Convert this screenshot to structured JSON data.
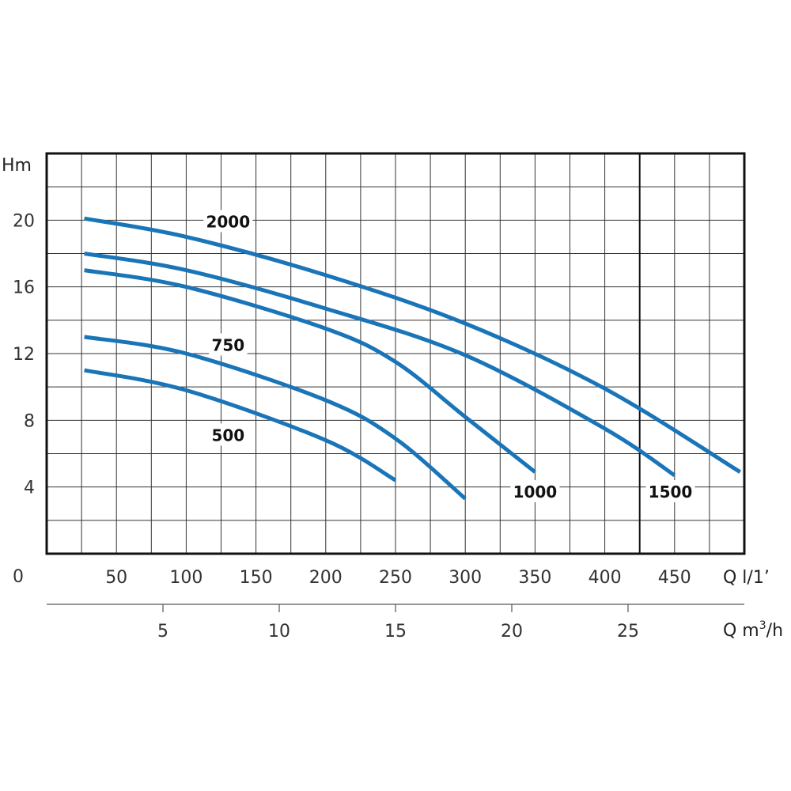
{
  "colors": {
    "curve": "#1a75b8",
    "grid": "#333333",
    "frame": "#111111",
    "background": "#ffffff"
  },
  "chart_data": {
    "type": "line",
    "grid": true,
    "y_axis": {
      "label": "Hm",
      "range": [
        0,
        24
      ],
      "ticks": [
        0,
        4,
        8,
        12,
        16,
        20
      ],
      "minor_step": 2
    },
    "x_axis_primary": {
      "label": "Q l/1’",
      "range": [
        0,
        500
      ],
      "ticks": [
        50,
        100,
        150,
        200,
        250,
        300,
        350,
        400,
        450
      ],
      "minor_step": 25
    },
    "x_axis_secondary": {
      "label_main": "Q m",
      "label_sup": "3",
      "label_tail": "/h",
      "ticks": [
        5,
        10,
        15,
        20,
        25
      ],
      "factor_l_per_min": 16.6667
    },
    "series": [
      {
        "name": "2000",
        "x": [
          27,
          100,
          200,
          300,
          400,
          497
        ],
        "y": [
          20.1,
          19.0,
          16.7,
          13.8,
          9.9,
          4.9
        ]
      },
      {
        "name": "1500",
        "x": [
          27,
          100,
          200,
          300,
          400,
          450
        ],
        "y": [
          18.0,
          17.0,
          14.7,
          11.9,
          7.5,
          4.7
        ]
      },
      {
        "name": "1000",
        "x": [
          27,
          100,
          200,
          250,
          300,
          350
        ],
        "y": [
          17.0,
          16.0,
          13.5,
          11.5,
          8.2,
          4.9
        ]
      },
      {
        "name": "750",
        "x": [
          27,
          100,
          200,
          250,
          300
        ],
        "y": [
          13.0,
          12.0,
          9.2,
          6.9,
          3.3
        ]
      },
      {
        "name": "500",
        "x": [
          27,
          100,
          200,
          250
        ],
        "y": [
          11.0,
          9.8,
          6.8,
          4.4
        ]
      }
    ],
    "curve_labels": [
      {
        "text": "2000",
        "x": 130,
        "y": 19.9
      },
      {
        "text": "750",
        "x": 130,
        "y": 12.5
      },
      {
        "text": "500",
        "x": 130,
        "y": 7.1
      },
      {
        "text": "1000",
        "x": 350,
        "y": 3.7
      },
      {
        "text": "1500",
        "x": 447,
        "y": 3.7
      }
    ],
    "reference_line_x": 425
  }
}
